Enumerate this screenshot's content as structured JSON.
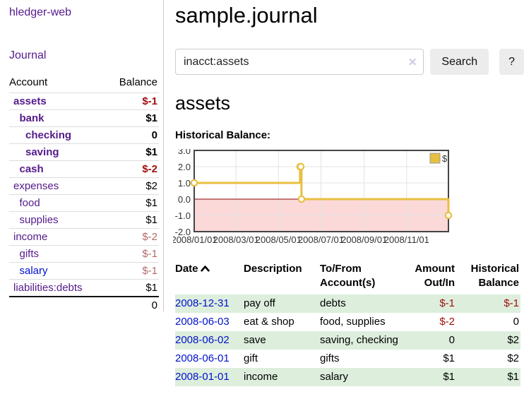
{
  "colors": {
    "link_purple": "#551a8b",
    "link_blue": "#0011cc",
    "negative_strong": "#a01010",
    "negative_soft": "#b36b6b",
    "stripe_green": "#ddeedd",
    "series_gold": "#e9bf41"
  },
  "sidebar": {
    "brand": "hledger-web",
    "journal_label": "Journal",
    "columns": [
      "Account",
      "Balance"
    ],
    "accounts": [
      {
        "name": "assets",
        "depth": 0,
        "bold": true,
        "balance": "$-1",
        "negative": "strong"
      },
      {
        "name": "bank",
        "depth": 1,
        "bold": true,
        "balance": "$1"
      },
      {
        "name": "checking",
        "depth": 2,
        "bold": true,
        "balance": "0"
      },
      {
        "name": "saving",
        "depth": 2,
        "bold": true,
        "balance": "$1"
      },
      {
        "name": "cash",
        "depth": 1,
        "bold": true,
        "balance": "$-2",
        "negative": "strong"
      },
      {
        "name": "expenses",
        "depth": 0,
        "bold": false,
        "balance": "$2"
      },
      {
        "name": "food",
        "depth": 1,
        "bold": false,
        "balance": "$1"
      },
      {
        "name": "supplies",
        "depth": 1,
        "bold": false,
        "balance": "$1"
      },
      {
        "name": "income",
        "depth": 0,
        "bold": false,
        "balance": "$-2",
        "negative": "soft"
      },
      {
        "name": "gifts",
        "depth": 1,
        "bold": false,
        "balance": "$-1",
        "negative": "soft"
      },
      {
        "name": "salary",
        "depth": 1,
        "bold": false,
        "balance": "$-1",
        "negative": "soft",
        "link": "blue"
      },
      {
        "name": "liabilities:debts",
        "depth": 0,
        "bold": false,
        "balance": "$1"
      }
    ],
    "total": "0"
  },
  "main": {
    "title": "sample.journal",
    "search": {
      "value": "inacct:assets",
      "clear_icon": "✕",
      "button_label": "Search",
      "help_label": "?"
    },
    "account_heading": "assets",
    "chart_label": "Historical Balance:"
  },
  "chart_data": {
    "type": "line",
    "style": "step-after",
    "title": "Historical Balance",
    "series": [
      {
        "name": "$",
        "color": "#e9bf41",
        "points": [
          [
            "2008-01-01",
            1
          ],
          [
            "2008-06-01",
            2
          ],
          [
            "2008-06-02",
            2
          ],
          [
            "2008-06-03",
            0
          ],
          [
            "2008-12-31",
            -1
          ]
        ]
      }
    ],
    "ylim": [
      -2,
      3
    ],
    "yticks": [
      3,
      2,
      1,
      0,
      -1,
      -2
    ],
    "xlim": [
      "2008-01-01",
      "2008-12-31"
    ],
    "xticks": [
      "2008/01/01",
      "2008/03/01",
      "2008/05/01",
      "2008/07/01",
      "2008/09/01",
      "2008/11/01"
    ],
    "grid": true,
    "legend_position": "top-right",
    "below_zero_fill": "#fbd9d9",
    "zero_line_color": "#8b0000"
  },
  "register": {
    "columns": [
      "Date",
      "Description",
      "To/From Account(s)",
      "Amount Out/In",
      "Historical Balance"
    ],
    "sort_indicator": "up",
    "rows": [
      {
        "date": "2008-12-31",
        "description": "pay off",
        "accounts": "debts",
        "amount": "$-1",
        "amount_negative": true,
        "balance": "$-1",
        "balance_negative": true
      },
      {
        "date": "2008-06-03",
        "description": "eat & shop",
        "accounts": "food, supplies",
        "amount": "$-2",
        "amount_negative": true,
        "balance": "0",
        "balance_negative": false
      },
      {
        "date": "2008-06-02",
        "description": "save",
        "accounts": "saving, checking",
        "amount": "0",
        "amount_negative": false,
        "balance": "$2",
        "balance_negative": false
      },
      {
        "date": "2008-06-01",
        "description": "gift",
        "accounts": "gifts",
        "amount": "$1",
        "amount_negative": false,
        "balance": "$2",
        "balance_negative": false
      },
      {
        "date": "2008-01-01",
        "description": "income",
        "accounts": "salary",
        "amount": "$1",
        "amount_negative": false,
        "balance": "$1",
        "balance_negative": false
      }
    ]
  }
}
